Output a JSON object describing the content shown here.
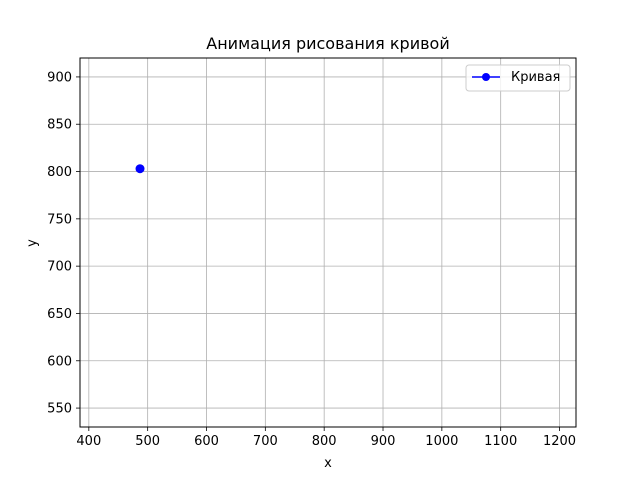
{
  "chart_data": {
    "type": "line",
    "title": "Анимация рисования кривой",
    "xlabel": "x",
    "ylabel": "y",
    "xlim": [
      385,
      1228
    ],
    "ylim": [
      530,
      920
    ],
    "xticks": [
      400,
      500,
      600,
      700,
      800,
      900,
      1000,
      1100,
      1200
    ],
    "yticks": [
      550,
      600,
      650,
      700,
      750,
      800,
      850,
      900
    ],
    "grid": true,
    "legend_position": "top-right",
    "series": [
      {
        "name": "Кривая",
        "color": "#0000ff",
        "marker": "circle",
        "x": [
          487
        ],
        "y": [
          803
        ]
      }
    ]
  }
}
